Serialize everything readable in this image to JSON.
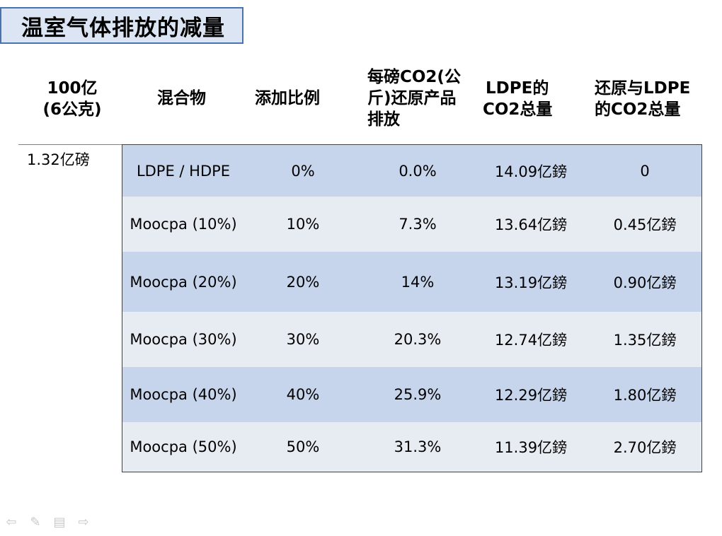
{
  "title": "温室气体排放的减量",
  "headers": {
    "col0_line1": "100亿",
    "col0_line2": "(6公克)",
    "col1": "混合物",
    "col2": "添加比例",
    "col3_line1": "每磅CO2(公",
    "col3_line2": "斤)还原产品",
    "col3_line3": "排放",
    "col4_line1": "LDPE的",
    "col4_line2": "CO2总量",
    "col5_line1": "还原与LDPE",
    "col5_line2": "的CO2总量"
  },
  "left_value": "1.32亿磅",
  "rows": [
    {
      "mixture": "LDPE / HDPE",
      "ratio": "0%",
      "reduction": "0.0%",
      "ldpe_total": "14.09亿鎊",
      "reduced_total": "0"
    },
    {
      "mixture": "Moocpa (10%)",
      "ratio": "10%",
      "reduction": "7.3%",
      "ldpe_total": "13.64亿鎊",
      "reduced_total": "0.45亿鎊"
    },
    {
      "mixture": "Moocpa (20%)",
      "ratio": "20%",
      "reduction": "14%",
      "ldpe_total": "13.19亿鎊",
      "reduced_total": "0.90亿鎊"
    },
    {
      "mixture": "Moocpa (30%)",
      "ratio": "30%",
      "reduction": "20.3%",
      "ldpe_total": "12.74亿鎊",
      "reduced_total": "1.35亿鎊"
    },
    {
      "mixture": "Moocpa (40%)",
      "ratio": "40%",
      "reduction": "25.9%",
      "ldpe_total": "12.29亿鎊",
      "reduced_total": "1.80亿鎊"
    },
    {
      "mixture": "Moocpa (50%)",
      "ratio": "50%",
      "reduction": "31.3%",
      "ldpe_total": "11.39亿鎊",
      "reduced_total": "2.70亿鎊"
    }
  ],
  "nav_icons": [
    "arrow-left-icon",
    "pen-icon",
    "menu-icon",
    "arrow-right-icon"
  ],
  "colors": {
    "title_bg": "#dbe5f3",
    "title_border": "#4a74b0",
    "row_dark": "#c6d5ec",
    "row_light": "#e7ebf2"
  }
}
